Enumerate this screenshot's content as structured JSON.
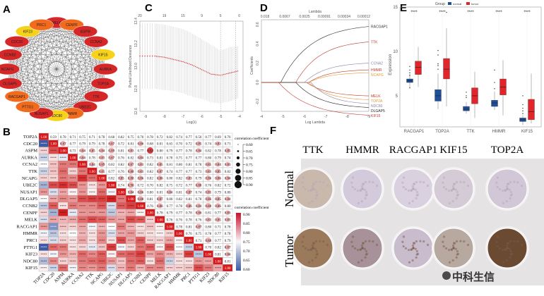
{
  "panel_labels": [
    "A",
    "B",
    "C",
    "D",
    "E",
    "F"
  ],
  "colors": {
    "red": "#d62728",
    "orange": "#f26b1d",
    "yellow": "#f7d21a",
    "normal": "#1f4e9a",
    "tumor": "#e0262a",
    "neg": "#3b5ba5",
    "pos": "#d7191c"
  },
  "chart_data": [
    {
      "panel": "A",
      "type": "network",
      "nodes": [
        {
          "name": "MELK",
          "level": "red"
        },
        {
          "name": "CENPF",
          "level": "orange"
        },
        {
          "name": "ASPM",
          "level": "red"
        },
        {
          "name": "CCNA2",
          "level": "red"
        },
        {
          "name": "KIF15",
          "level": "yellow"
        },
        {
          "name": "AURKA",
          "level": "red"
        },
        {
          "name": "TOP2A",
          "level": "red"
        },
        {
          "name": "TTK",
          "level": "red"
        },
        {
          "name": "UBE2C",
          "level": "red"
        },
        {
          "name": "HMMR",
          "level": "orange"
        },
        {
          "name": "NDC80",
          "level": "yellow"
        },
        {
          "name": "NUSAP1",
          "level": "red"
        },
        {
          "name": "PTTG1",
          "level": "orange"
        },
        {
          "name": "RACGAP1",
          "level": "orange"
        },
        {
          "name": "DLGAP5",
          "level": "red"
        },
        {
          "name": "NCAPG",
          "level": "red"
        },
        {
          "name": "CCNB2",
          "level": "red"
        },
        {
          "name": "CDC20",
          "level": "red"
        },
        {
          "name": "KIF23",
          "level": "yellow"
        },
        {
          "name": "PRC1",
          "level": "orange"
        }
      ]
    },
    {
      "panel": "B",
      "type": "heatmap",
      "genes": [
        "TOP2A",
        "CDC20",
        "ASPM",
        "AURKA",
        "CCNA2",
        "TTK",
        "NCAPG",
        "UBE2C",
        "NUSAP1",
        "DLGAP5",
        "CCNB2",
        "CENPF",
        "MELK",
        "RACGAP1",
        "HMMR",
        "PRC1",
        "PTTG1",
        "KIF23",
        "NDC80",
        "KIF15"
      ],
      "upper_values": [
        [
          0.59,
          0.78,
          0.71,
          0.75,
          0.71,
          0.78,
          0.68,
          0.82,
          0.75,
          0.7,
          0.78,
          0.72,
          0.82,
          0.74,
          0.77,
          0.5,
          0.77,
          0.69,
          0.76
        ],
        [
          0.87,
          0.77,
          0.79,
          0.79,
          0.78,
          0.87,
          0.72,
          0.81,
          0.86,
          0.68,
          0.81,
          0.65,
          0.7,
          0.72,
          0.85,
          0.74,
          0.83,
          0.71
        ],
        [
          0.73,
          0.84,
          0.85,
          0.84,
          0.89,
          0.81,
          0.83,
          0.77,
          0.92,
          0.8,
          0.79,
          0.77,
          0.78,
          0.84,
          0.82,
          0.78,
          0.85
        ],
        [
          0.84,
          0.78,
          0.83,
          0.87,
          0.76,
          0.82,
          0.84,
          0.73,
          0.81,
          0.78,
          0.75,
          0.77,
          0.77,
          0.8,
          0.79,
          0.74
        ],
        [
          0.84,
          0.89,
          0.82,
          0.82,
          0.87,
          0.83,
          0.82,
          0.85,
          0.81,
          0.8,
          0.81,
          0.78,
          0.85,
          0.84,
          0.83
        ],
        [
          0.85,
          0.77,
          0.76,
          0.88,
          0.83,
          0.82,
          0.87,
          0.74,
          0.77,
          0.77,
          0.73,
          0.83,
          0.85,
          0.82
        ],
        [
          0.82,
          0.85,
          0.88,
          0.86,
          0.82,
          0.86,
          0.8,
          0.82,
          0.83,
          0.79,
          0.86,
          0.86,
          0.84
        ],
        [
          0.74,
          0.9,
          0.72,
          0.7,
          0.82,
          0.75,
          0.72,
          0.77,
          0.88,
          0.76,
          0.82,
          0.72
        ],
        [
          0.84,
          0.86,
          0.8,
          0.81,
          0.84,
          0.81,
          0.87,
          0.74,
          0.85,
          0.79,
          0.8
        ],
        [
          0.88,
          0.81,
          0.87,
          0.8,
          0.82,
          0.81,
          0.78,
          0.86,
          0.85,
          0.84
        ],
        [
          0.76,
          0.86,
          0.77,
          0.78,
          0.86,
          0.84,
          0.88,
          0.86,
          0.8
        ],
        [
          0.78,
          0.79,
          0.77,
          0.78,
          0.86,
          0.81,
          0.77,
          0.83
        ],
        [
          0.76,
          0.76,
          0.78,
          0.76,
          0.83,
          0.85,
          0.83
        ],
        [
          0.78,
          0.81,
          0.87,
          0.8,
          0.71,
          0.78
        ],
        [
          0.76,
          0.75,
          0.78,
          0.77,
          0.78
        ],
        [
          0.71,
          0.88,
          0.77,
          0.79
        ],
        [
          0.7,
          0.82,
          0.87
        ],
        [
          0.81,
          0.84
        ],
        [
          0.81
        ],
        []
      ],
      "diagonal_label": "1.00",
      "lower_label": "****",
      "legend_title": "correlation coefficient",
      "size_legend_ticks": [
        "0.60",
        "0.65",
        "0.70",
        "0.75",
        "0.80",
        "0.85",
        "0.90"
      ],
      "color_legend_ticks": [
        "0.90",
        "0.85",
        "0.80",
        "0.75",
        "0.70",
        "0.65",
        "0.60"
      ]
    },
    {
      "panel": "C",
      "type": "line",
      "xlabel": "Log(λ)",
      "ylabel": "Partial Likelihood Deviance",
      "xlim": [
        -9.3,
        -3.8
      ],
      "ylim": [
        12.6,
        13.4
      ],
      "xticks": [
        "-9",
        "-8",
        "-7",
        "-6",
        "-5",
        "-4"
      ],
      "yticks": [
        "12.6",
        "12.8",
        "13.0",
        "13.2",
        "13.4"
      ],
      "top_ticks": [
        {
          "x": -9.3,
          "label": "20"
        },
        {
          "x": -8,
          "label": "19"
        },
        {
          "x": -7,
          "label": "15"
        },
        {
          "x": -6,
          "label": "9"
        },
        {
          "x": -5,
          "label": "5"
        },
        {
          "x": -4,
          "label": "0"
        }
      ],
      "x": [
        -9.3,
        -8.5,
        -8,
        -7.5,
        -7,
        -6.5,
        -6,
        -5.5,
        -5,
        -4.5,
        -4
      ],
      "y": [
        13.09,
        13.09,
        13.08,
        13.06,
        13.04,
        13.01,
        12.97,
        12.93,
        12.92,
        12.94,
        12.96
      ],
      "upper": [
        13.38,
        13.38,
        13.37,
        13.35,
        13.33,
        13.29,
        13.24,
        13.19,
        13.14,
        13.17,
        13.18
      ],
      "lower": [
        12.8,
        12.8,
        12.79,
        12.78,
        12.76,
        12.73,
        12.71,
        12.68,
        12.67,
        12.69,
        12.72
      ],
      "vlines": [
        -5,
        -4.2
      ]
    },
    {
      "panel": "D",
      "type": "line",
      "xlabel": "Log Lambda",
      "ylabel": "Coefficients",
      "top_label": "Lambda",
      "xlim": [
        -4,
        -9
      ],
      "ylim": [
        -0.3,
        0.65
      ],
      "xticks": [
        "-4",
        "-5",
        "-6",
        "-7",
        "-8",
        "-9"
      ],
      "yticks": [
        "-0.2",
        "0.0",
        "0.2",
        "0.4",
        "0.6"
      ],
      "top_ticks": [
        "0.018",
        "0.0067",
        "0.0025",
        "0.00091",
        "0.00034",
        "0.00012"
      ],
      "series": [
        {
          "name": "RACGAP1",
          "color": "#333333",
          "start": -4.9,
          "end": 0.58
        },
        {
          "name": "TTK",
          "color": "#c0392b",
          "start": -5.6,
          "end": 0.42
        },
        {
          "name": "CCNA2",
          "color": "#8e7fa8",
          "start": -6,
          "end": 0.2
        },
        {
          "name": "HMMR",
          "color": "#c0392b",
          "start": -6.2,
          "end": 0.13
        },
        {
          "name": "NCAPG",
          "color": "#e39b2c",
          "start": -6.2,
          "end": 0.1
        },
        {
          "name": "MELK",
          "color": "#c0392b",
          "start": -6.1,
          "end": -0.14
        },
        {
          "name": "TOP2A",
          "color": "#e39b2c",
          "start": -6.2,
          "end": -0.18
        },
        {
          "name": "NDC80",
          "color": "#8e7fa8",
          "start": -6.3,
          "end": -0.22
        },
        {
          "name": "DLGAP5",
          "color": "#222222",
          "start": -5.6,
          "end": -0.26
        },
        {
          "name": "KIF15",
          "color": "#c0392b",
          "start": -4.8,
          "end": -0.34
        }
      ]
    },
    {
      "panel": "E",
      "type": "box",
      "ylabel": "Expression",
      "ylim": [
        1.5,
        15
      ],
      "yticks": [
        "5",
        "10",
        "15"
      ],
      "legend_title": "Group",
      "legend": [
        "normal",
        "tumor"
      ],
      "significance": "****",
      "categories": [
        "RACGAP1",
        "TOP2A",
        "TTK",
        "HMMR",
        "KIF15"
      ],
      "series": [
        {
          "name": "normal",
          "boxes": [
            [
              6.0,
              6.5,
              6.7,
              6.9,
              7.5
            ],
            [
              3.5,
              4.4,
              5.0,
              5.7,
              7.5
            ],
            [
              3.0,
              3.3,
              3.5,
              3.8,
              4.3
            ],
            [
              3.4,
              3.8,
              4.2,
              4.5,
              5.5
            ],
            [
              1.7,
              2.1,
              2.3,
              2.5,
              2.8
            ]
          ],
          "outliers": [
            [
              5.9,
              7.3,
              7.6,
              7.9,
              8.3
            ],
            [
              8.0,
              8.4,
              8.6,
              9.6,
              10.1
            ],
            [
              4.8,
              5.4,
              5.0
            ],
            [
              6.5,
              5.8,
              7.9
            ],
            [
              5.0,
              4.0,
              3.6,
              3.3,
              3.0
            ]
          ]
        },
        {
          "name": "tumor",
          "boxes": [
            [
              6.0,
              7.4,
              8.2,
              8.9,
              10.5
            ],
            [
              3.8,
              6.9,
              8.0,
              9.2,
              12.6
            ],
            [
              2.5,
              4.1,
              5.0,
              5.9,
              7.7
            ],
            [
              2.8,
              5.1,
              6.0,
              6.9,
              9.0
            ],
            [
              1.9,
              2.3,
              3.2,
              4.6,
              7.5
            ]
          ],
          "outliers": [
            [],
            [
              14.4
            ],
            [],
            [],
            []
          ]
        }
      ]
    }
  ],
  "panel_f": {
    "columns": [
      "TTK",
      "HMMR",
      "RACGAP1",
      "KIF15",
      "TOP2A"
    ],
    "rows": [
      "Normal",
      "Tumor"
    ]
  },
  "watermark": {
    "text": "中科生信",
    "logo": "微信公众号"
  }
}
